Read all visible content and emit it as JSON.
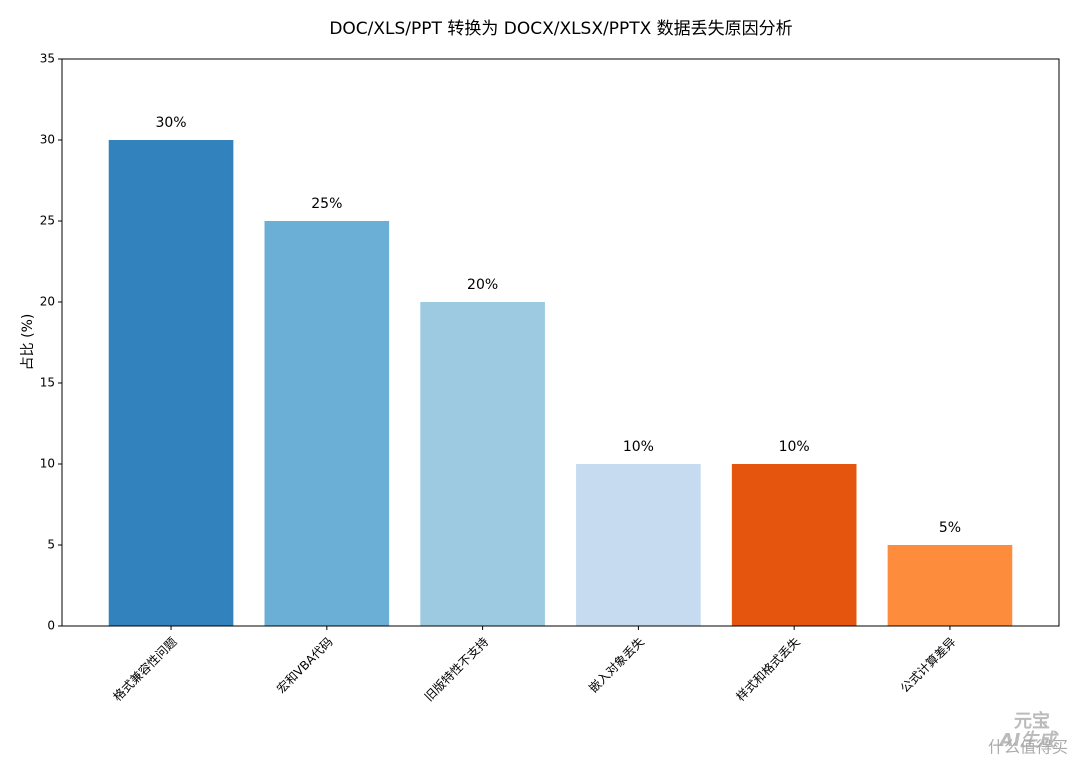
{
  "chart_data": {
    "type": "bar",
    "title": "DOC/XLS/PPT 转换为 DOCX/XLSX/PPTX 数据丢失原因分析",
    "y_label": "占比 (%)",
    "categories": [
      "格式兼容性问题",
      "宏和VBA代码",
      "旧版特性不支持",
      "嵌入对象丢失",
      "样式和格式丢失",
      "公式计算差异"
    ],
    "values": [
      30,
      25,
      20,
      10,
      10,
      5
    ],
    "value_labels": [
      "30%",
      "25%",
      "20%",
      "10%",
      "10%",
      "5%"
    ],
    "colors": [
      "#3182bd",
      "#6baed6",
      "#9ecae1",
      "#c6dbef",
      "#e6550d",
      "#fd8d3c"
    ],
    "ylim": [
      0,
      35
    ],
    "yticks": [
      0,
      5,
      10,
      15,
      20,
      25,
      30,
      35
    ],
    "grid": false
  },
  "watermark": [
    "元宝",
    "AI生成",
    "什么值得买"
  ]
}
